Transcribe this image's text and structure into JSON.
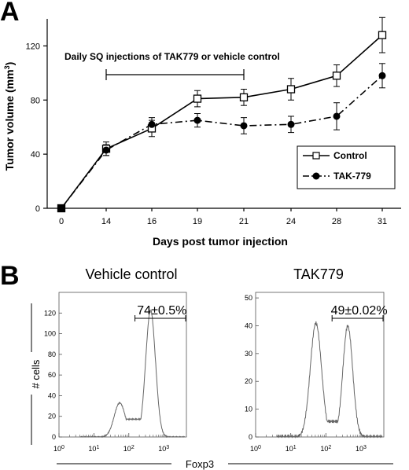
{
  "chart_data": [
    {
      "panel_label": "A",
      "type": "line",
      "xlabel": "Days post tumor injection",
      "ylabel": "Tumor volume (mm3)",
      "ylim": [
        0,
        140
      ],
      "y_ticks": [
        0,
        40,
        80,
        120
      ],
      "categories": [
        "0",
        "14",
        "16",
        "19",
        "21",
        "24",
        "28",
        "31"
      ],
      "series": [
        {
          "name": "Control",
          "values": [
            0,
            44,
            59,
            81,
            82,
            88,
            98,
            128
          ],
          "errors": [
            0,
            5,
            6,
            6,
            6,
            8,
            8,
            13
          ],
          "marker": "open-square",
          "line": "solid"
        },
        {
          "name": "TAK-779",
          "values": [
            0,
            43,
            62,
            65,
            61,
            62,
            68,
            98
          ],
          "errors": [
            0,
            4,
            5,
            5,
            6,
            6,
            10,
            9
          ],
          "marker": "filled-circle",
          "line": "dash-dot"
        }
      ],
      "annotation": {
        "text": "Daily SQ injections of TAK779 or vehicle control",
        "from": "14",
        "to": "21"
      },
      "legend_position": "bottom-right",
      "grid": false
    },
    {
      "panel_label": "B",
      "type": "area",
      "shared_xlabel": "Foxp3",
      "shared_ylabel": "# cells",
      "x_scale": "log",
      "x_ticks": [
        "10^0",
        "10^1",
        "10^2",
        "10^3"
      ],
      "histograms": [
        {
          "title": "Vehicle control",
          "ylim": [
            0,
            140
          ],
          "y_ticks": [
            0,
            20,
            40,
            60,
            80,
            100,
            120
          ],
          "gate_label": "74±0.5%",
          "gate_range": [
            150,
            10000
          ],
          "peaks": [
            {
              "x": 55,
              "height": 33
            },
            {
              "x": 420,
              "height": 123
            }
          ]
        },
        {
          "title": "TAK779",
          "ylim": [
            0,
            52
          ],
          "y_ticks": [
            0,
            10,
            20,
            30,
            40,
            50
          ],
          "gate_label": "49±0.02%",
          "gate_range": [
            150,
            10000
          ],
          "peaks": [
            {
              "x": 52,
              "height": 41
            },
            {
              "x": 420,
              "height": 40
            }
          ]
        }
      ]
    }
  ]
}
